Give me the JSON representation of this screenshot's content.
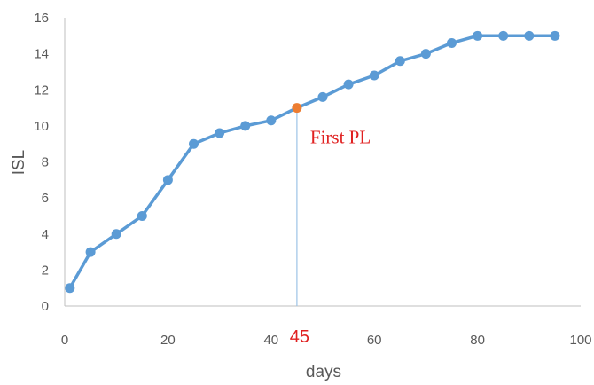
{
  "chart_data": {
    "type": "line",
    "xlabel": "days",
    "ylabel": "ISL",
    "xlim": [
      0,
      100
    ],
    "ylim": [
      0,
      16
    ],
    "xticks": [
      0,
      20,
      40,
      60,
      80,
      100
    ],
    "yticks": [
      0,
      2,
      4,
      6,
      8,
      10,
      12,
      14,
      16
    ],
    "grid": false,
    "line_color": "#5b9bd5",
    "highlight_color": "#ed7d31",
    "series": [
      {
        "x": [
          1,
          5,
          10,
          15,
          20,
          25,
          30,
          35,
          40,
          45,
          50,
          55,
          60,
          65,
          70,
          75,
          80,
          85,
          90,
          95
        ],
        "y": [
          1,
          3,
          4,
          5,
          7,
          9,
          9.6,
          10,
          10.3,
          11,
          11.6,
          12.3,
          12.8,
          13.6,
          14,
          14.6,
          15,
          15,
          15,
          15
        ]
      }
    ],
    "annotations": [
      {
        "x": 45,
        "y": 11,
        "text": "First PL",
        "axis_label": "45"
      }
    ]
  }
}
